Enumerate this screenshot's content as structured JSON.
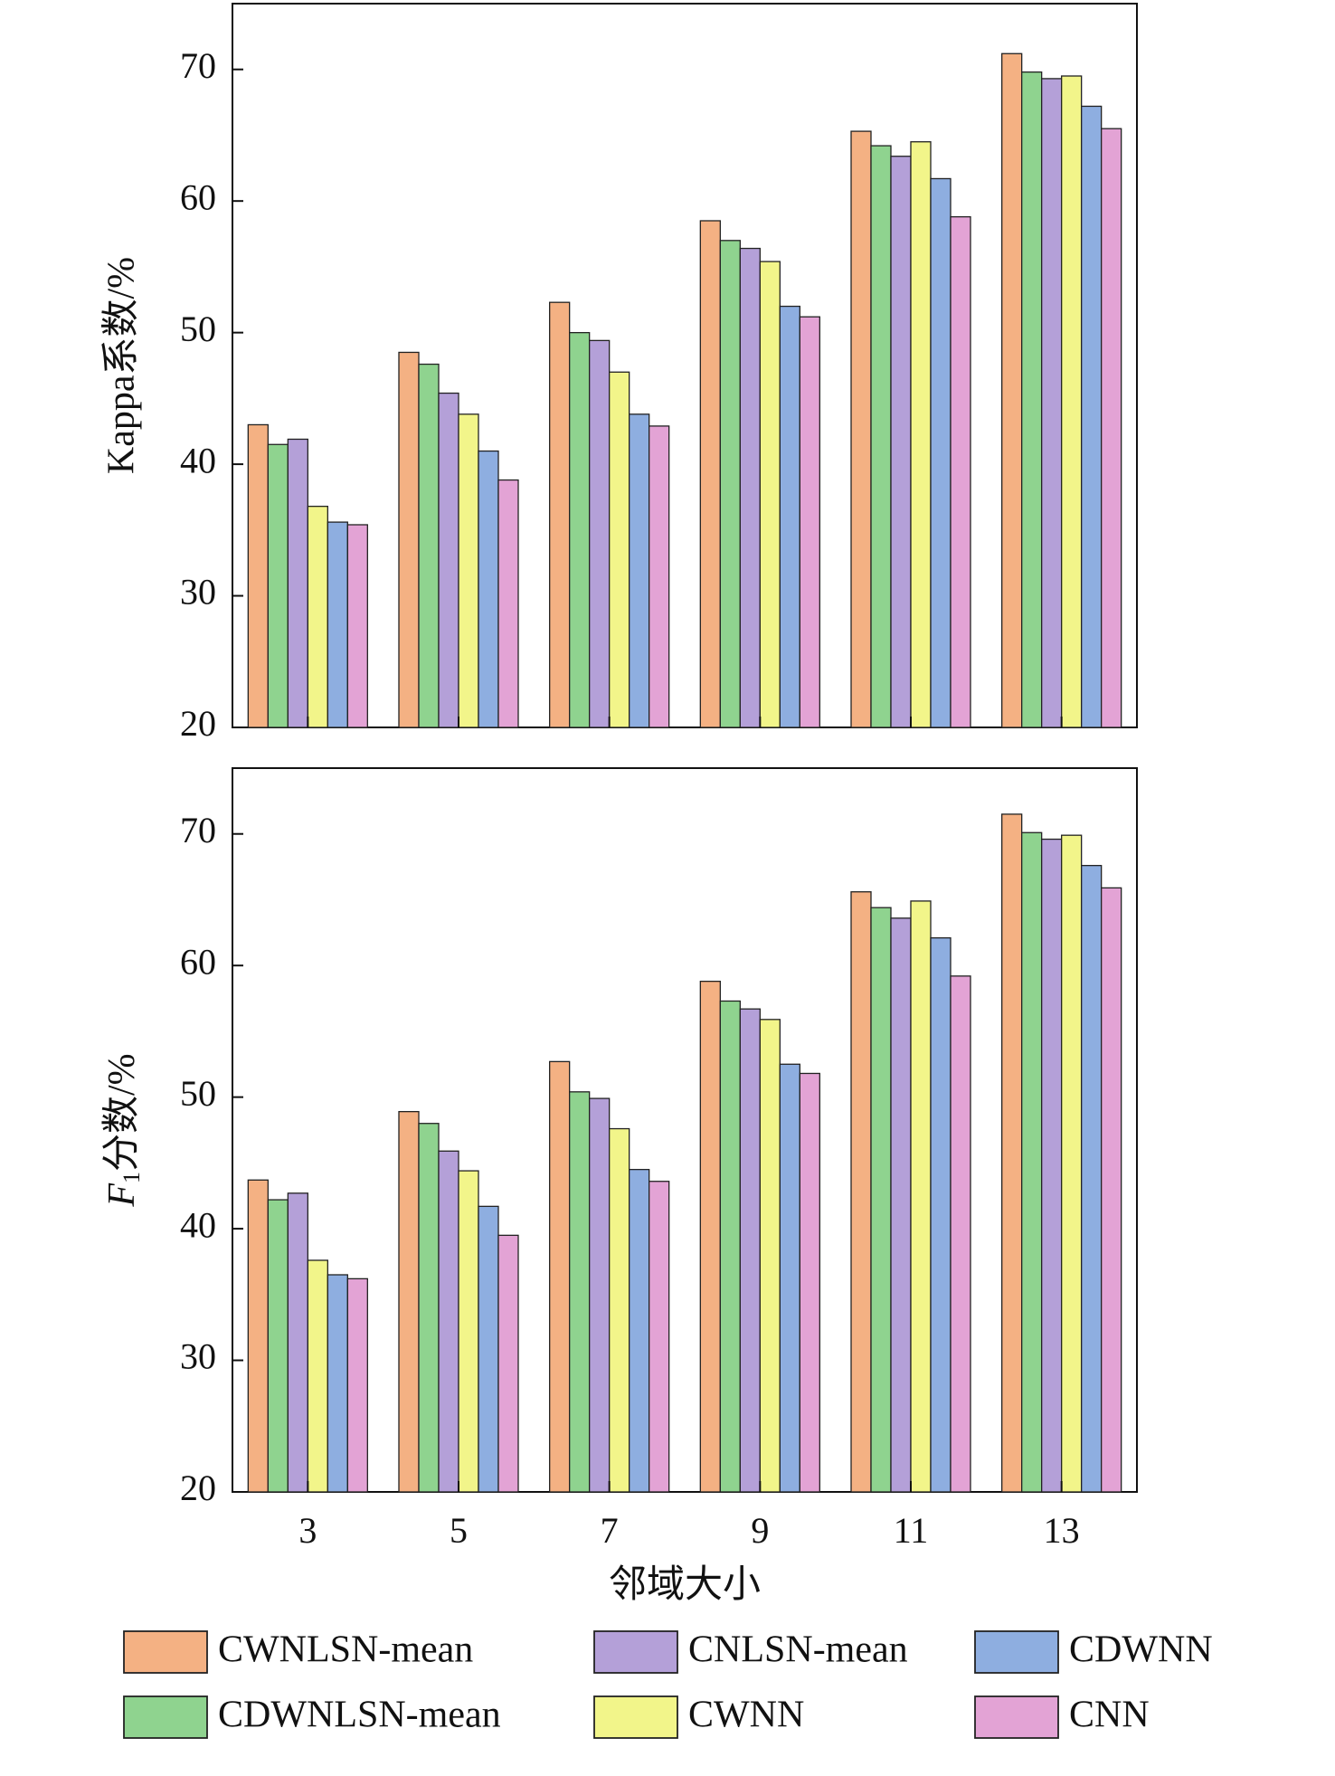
{
  "chart_data": [
    {
      "type": "bar",
      "ylabel": "Kappa系数/%",
      "ylim": [
        20,
        75
      ],
      "yticks": [
        20,
        30,
        40,
        50,
        60,
        70
      ],
      "categories": [
        "3",
        "5",
        "7",
        "9",
        "11",
        "13"
      ],
      "series": [
        {
          "name": "CWNLSN-mean",
          "color": "#f4b183",
          "values": [
            43.0,
            48.5,
            52.3,
            58.5,
            65.3,
            71.2
          ]
        },
        {
          "name": "CDWNLSN-mean",
          "color": "#8fd38f",
          "values": [
            41.5,
            47.6,
            50.0,
            57.0,
            64.2,
            69.8
          ]
        },
        {
          "name": "CNLSN-mean",
          "color": "#b4a0d8",
          "values": [
            41.9,
            45.4,
            49.4,
            56.4,
            63.4,
            69.3
          ]
        },
        {
          "name": "CWNN",
          "color": "#f2f58a",
          "values": [
            36.8,
            43.8,
            47.0,
            55.4,
            64.5,
            69.5
          ]
        },
        {
          "name": "CDWNN",
          "color": "#8eaee0",
          "values": [
            35.6,
            41.0,
            43.8,
            52.0,
            61.7,
            67.2
          ]
        },
        {
          "name": "CNN",
          "color": "#e3a3d5",
          "values": [
            35.4,
            38.8,
            42.9,
            51.2,
            58.8,
            65.5
          ]
        }
      ]
    },
    {
      "type": "bar",
      "ylabel_italic": "F",
      "ylabel_sub": "1",
      "ylabel": "分数/%",
      "xlabel": "邻域大小",
      "ylim": [
        20,
        75
      ],
      "yticks": [
        20,
        30,
        40,
        50,
        60,
        70
      ],
      "categories": [
        "3",
        "5",
        "7",
        "9",
        "11",
        "13"
      ],
      "series": [
        {
          "name": "CWNLSN-mean",
          "color": "#f4b183",
          "values": [
            43.7,
            48.9,
            52.7,
            58.8,
            65.6,
            71.5
          ]
        },
        {
          "name": "CDWNLSN-mean",
          "color": "#8fd38f",
          "values": [
            42.2,
            48.0,
            50.4,
            57.3,
            64.4,
            70.1
          ]
        },
        {
          "name": "CNLSN-mean",
          "color": "#b4a0d8",
          "values": [
            42.7,
            45.9,
            49.9,
            56.7,
            63.6,
            69.6
          ]
        },
        {
          "name": "CWNN",
          "color": "#f2f58a",
          "values": [
            37.6,
            44.4,
            47.6,
            55.9,
            64.9,
            69.9
          ]
        },
        {
          "name": "CDWNN",
          "color": "#8eaee0",
          "values": [
            36.5,
            41.7,
            44.5,
            52.5,
            62.1,
            67.6
          ]
        },
        {
          "name": "CNN",
          "color": "#e3a3d5",
          "values": [
            36.2,
            39.5,
            43.6,
            51.8,
            59.2,
            65.9
          ]
        }
      ]
    }
  ],
  "legend": [
    {
      "name": "CWNLSN-mean",
      "color": "#f4b183"
    },
    {
      "name": "CNLSN-mean",
      "color": "#b4a0d8"
    },
    {
      "name": "CDWNN",
      "color": "#8eaee0"
    },
    {
      "name": "CDWNLSN-mean",
      "color": "#8fd38f"
    },
    {
      "name": "CWNN",
      "color": "#f2f58a"
    },
    {
      "name": "CNN",
      "color": "#e3a3d5"
    }
  ]
}
